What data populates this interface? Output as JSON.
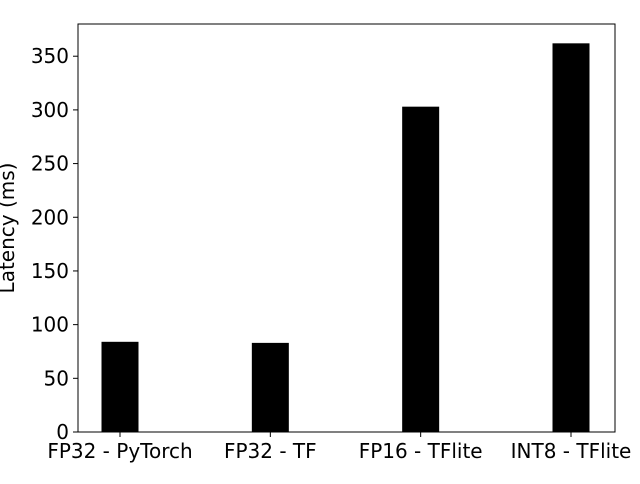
{
  "chart_data": {
    "type": "bar",
    "title": "",
    "xlabel": "",
    "ylabel": "Latency (ms)",
    "categories": [
      "FP32 - PyTorch",
      "FP32 - TF",
      "FP16 - TFlite",
      "INT8 - TFlite"
    ],
    "values": [
      84,
      83,
      303,
      362
    ],
    "ylim": [
      0,
      380
    ],
    "yticks": [
      0,
      50,
      100,
      150,
      200,
      250,
      300,
      350
    ],
    "grid": false,
    "bar_color": "#000000"
  }
}
